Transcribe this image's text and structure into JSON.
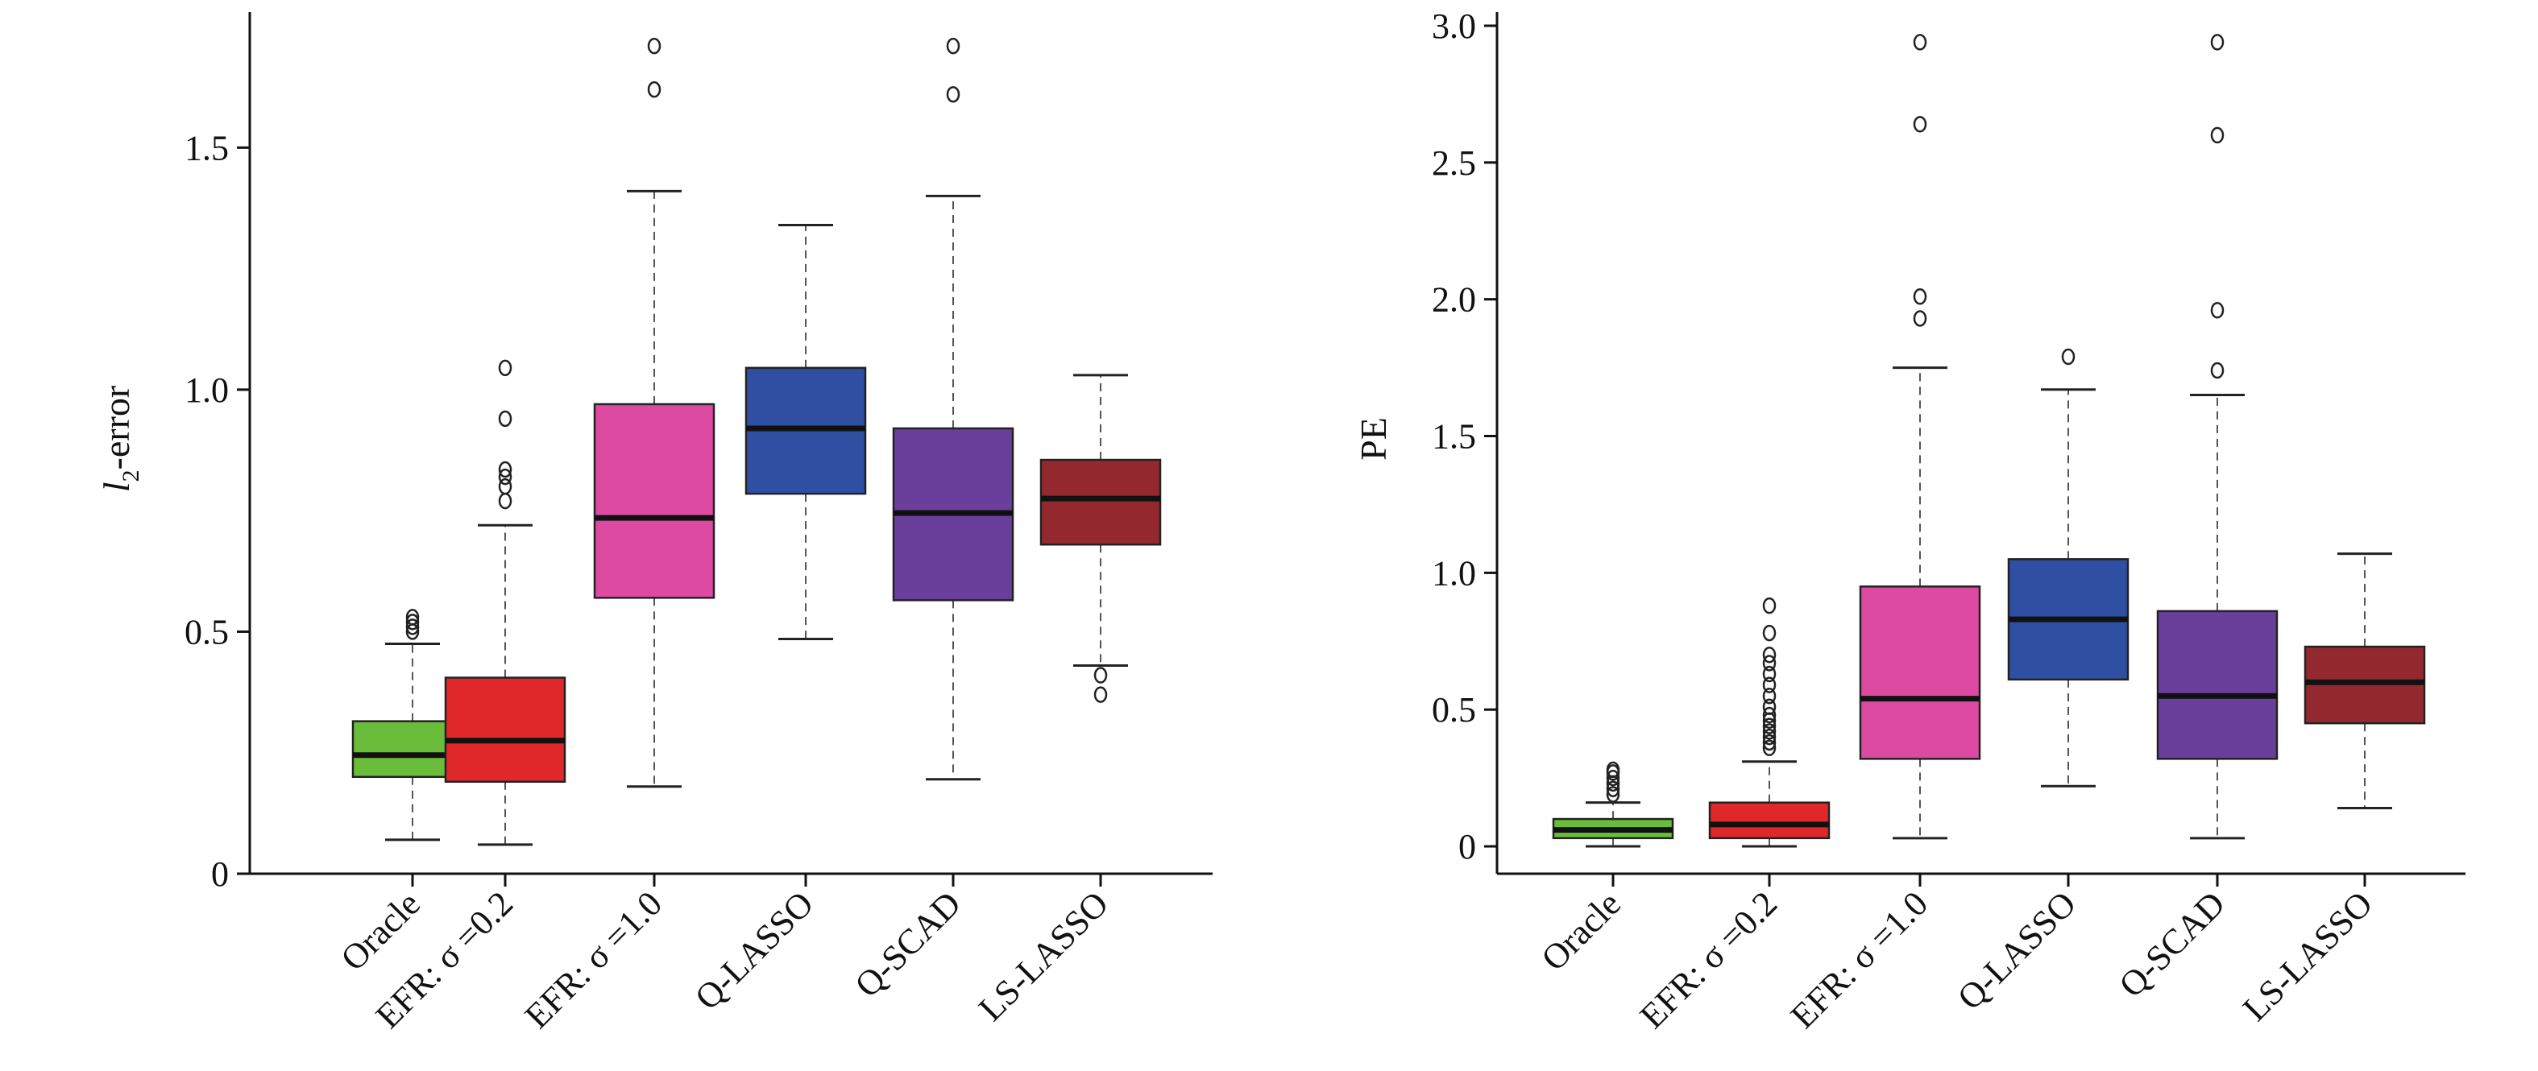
{
  "chart_data": [
    {
      "type": "box",
      "ylabel_main": "l",
      "ylabel_sub": "2",
      "ylabel_rest": "-error",
      "ylim": [
        0,
        1.78
      ],
      "yticks": [
        0,
        0.5,
        1.0,
        1.5
      ],
      "ytick_labels": [
        "0",
        "0.5",
        "1.0",
        "1.5"
      ],
      "categories": [
        "Oracle",
        "EFR: σ =0.2",
        "EFR: σ =1.0",
        "Q-LASSO",
        "Q-SCAD",
        "LS-LASSO"
      ],
      "boxes": [
        {
          "low": 0.07,
          "q1": 0.2,
          "median": 0.245,
          "q3": 0.315,
          "high": 0.475,
          "outliers": [
            0.5,
            0.51,
            0.52,
            0.53
          ],
          "color": "#6abd3b"
        },
        {
          "low": 0.06,
          "q1": 0.19,
          "median": 0.275,
          "q3": 0.405,
          "high": 0.72,
          "outliers": [
            0.77,
            0.8,
            0.82,
            0.835,
            0.94,
            1.045
          ],
          "color": "#e0282b"
        },
        {
          "low": 0.18,
          "q1": 0.57,
          "median": 0.735,
          "q3": 0.97,
          "high": 1.41,
          "outliers": [
            1.62,
            1.71
          ],
          "color": "#dd4aa2"
        },
        {
          "low": 0.485,
          "q1": 0.785,
          "median": 0.92,
          "q3": 1.045,
          "high": 1.34,
          "outliers": [],
          "color": "#2e4fa2"
        },
        {
          "low": 0.195,
          "q1": 0.565,
          "median": 0.745,
          "q3": 0.92,
          "high": 1.4,
          "outliers": [
            1.61,
            1.71
          ],
          "color": "#6a3f9c"
        },
        {
          "low": 0.43,
          "q1": 0.68,
          "median": 0.775,
          "q3": 0.855,
          "high": 1.03,
          "outliers": [
            0.37,
            0.41
          ],
          "color": "#93292f"
        }
      ]
    },
    {
      "type": "box",
      "ylabel": "PE",
      "ylim": [
        -0.1,
        3.05
      ],
      "yticks": [
        0,
        0.5,
        1.0,
        1.5,
        2.0,
        2.5,
        3.0
      ],
      "ytick_labels": [
        "0",
        "0.5",
        "1.0",
        "1.5",
        "2.0",
        "2.5",
        "3.0"
      ],
      "categories": [
        "Oracle",
        "EFR: σ =0.2",
        "EFR: σ =1.0",
        "Q-LASSO",
        "Q-SCAD",
        "LS-LASSO"
      ],
      "boxes": [
        {
          "low": 0.0,
          "q1": 0.03,
          "median": 0.06,
          "q3": 0.1,
          "high": 0.16,
          "outliers": [
            0.19,
            0.21,
            0.23,
            0.25,
            0.27,
            0.28
          ],
          "color": "#6abd3b"
        },
        {
          "low": 0.0,
          "q1": 0.03,
          "median": 0.08,
          "q3": 0.16,
          "high": 0.31,
          "outliers": [
            0.36,
            0.38,
            0.4,
            0.42,
            0.44,
            0.46,
            0.48,
            0.51,
            0.55,
            0.59,
            0.63,
            0.67,
            0.7,
            0.78,
            0.88
          ],
          "color": "#e0282b"
        },
        {
          "low": 0.03,
          "q1": 0.32,
          "median": 0.54,
          "q3": 0.95,
          "high": 1.75,
          "outliers": [
            1.93,
            2.01,
            2.64,
            2.94
          ],
          "color": "#dd4aa2"
        },
        {
          "low": 0.22,
          "q1": 0.61,
          "median": 0.83,
          "q3": 1.05,
          "high": 1.67,
          "outliers": [
            1.79
          ],
          "color": "#2e4fa2"
        },
        {
          "low": 0.03,
          "q1": 0.32,
          "median": 0.55,
          "q3": 0.86,
          "high": 1.65,
          "outliers": [
            1.74,
            1.96,
            2.6,
            2.94
          ],
          "color": "#6a3f9c"
        },
        {
          "low": 0.14,
          "q1": 0.45,
          "median": 0.6,
          "q3": 0.73,
          "high": 1.07,
          "outliers": [],
          "color": "#93292f"
        }
      ]
    }
  ]
}
